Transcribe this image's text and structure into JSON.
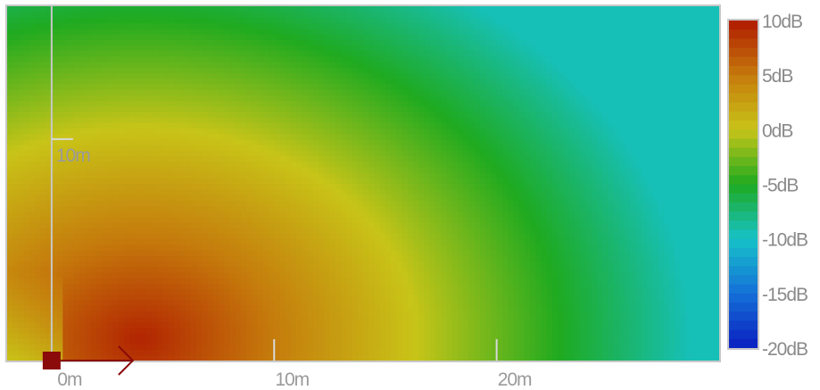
{
  "chart_data": {
    "type": "heatmap",
    "title": "",
    "xlabel": "",
    "ylabel": "",
    "x_ticks": [
      {
        "value": 0,
        "label": "0m"
      },
      {
        "value": 10,
        "label": "10m"
      },
      {
        "value": 20,
        "label": "20m"
      }
    ],
    "y_ticks": [
      {
        "value": 10,
        "label": "10m"
      }
    ],
    "xlim": [
      -2,
      30
    ],
    "ylim": [
      0,
      16
    ],
    "colorbar": {
      "unit": "dB",
      "range": [
        -20,
        10
      ],
      "ticks": [
        {
          "value": 10,
          "label": "10dB"
        },
        {
          "value": 5,
          "label": "5dB"
        },
        {
          "value": 0,
          "label": "0dB"
        },
        {
          "value": -5,
          "label": "-5dB"
        },
        {
          "value": -10,
          "label": "-10dB"
        },
        {
          "value": -15,
          "label": "-15dB"
        },
        {
          "value": -20,
          "label": "-20dB"
        }
      ],
      "stops": [
        {
          "value": 10,
          "color": "#b01a00"
        },
        {
          "value": 5,
          "color": "#c57a0c"
        },
        {
          "value": 0,
          "color": "#c8c418"
        },
        {
          "value": -5,
          "color": "#1faa20"
        },
        {
          "value": -10,
          "color": "#16c2c8"
        },
        {
          "value": -15,
          "color": "#1470d8"
        },
        {
          "value": -20,
          "color": "#0a1ec0"
        }
      ]
    },
    "field": {
      "peak": {
        "x": 4,
        "y": 1,
        "db": 9.5
      },
      "falloff_db_per_m": 1.0,
      "elongation_x": 1.3,
      "min_db": -9.5
    },
    "source": {
      "x": 0,
      "y": 0,
      "color": "#8b0a0a",
      "direction": "right"
    }
  }
}
